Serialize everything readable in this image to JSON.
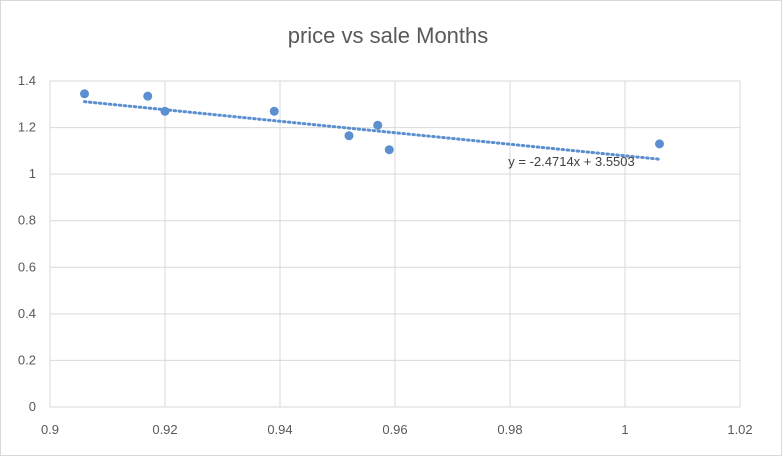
{
  "chart_data": {
    "type": "scatter",
    "title": "price vs sale Months",
    "xlabel": "",
    "ylabel": "",
    "xlim": [
      0.9,
      1.02
    ],
    "ylim": [
      0,
      1.4
    ],
    "x_ticks": [
      "0.9",
      "0.92",
      "0.94",
      "0.96",
      "0.98",
      "1",
      "1.02"
    ],
    "y_ticks": [
      "0",
      "0.2",
      "0.4",
      "0.6",
      "0.8",
      "1",
      "1.2",
      "1.4"
    ],
    "grid": true,
    "series": [
      {
        "points": [
          {
            "x": 0.906,
            "y": 1.345
          },
          {
            "x": 0.917,
            "y": 1.335
          },
          {
            "x": 0.92,
            "y": 1.27
          },
          {
            "x": 0.939,
            "y": 1.27
          },
          {
            "x": 0.952,
            "y": 1.165
          },
          {
            "x": 0.957,
            "y": 1.21
          },
          {
            "x": 0.959,
            "y": 1.105
          },
          {
            "x": 1.006,
            "y": 1.13
          }
        ],
        "color": "#5b8fcf"
      }
    ],
    "trendline": {
      "type": "linear",
      "slope": -2.4714,
      "intercept": 3.5503,
      "x_range": [
        0.906,
        1.006
      ],
      "equation_label": "y = -2.4714x + 3.5503"
    }
  }
}
